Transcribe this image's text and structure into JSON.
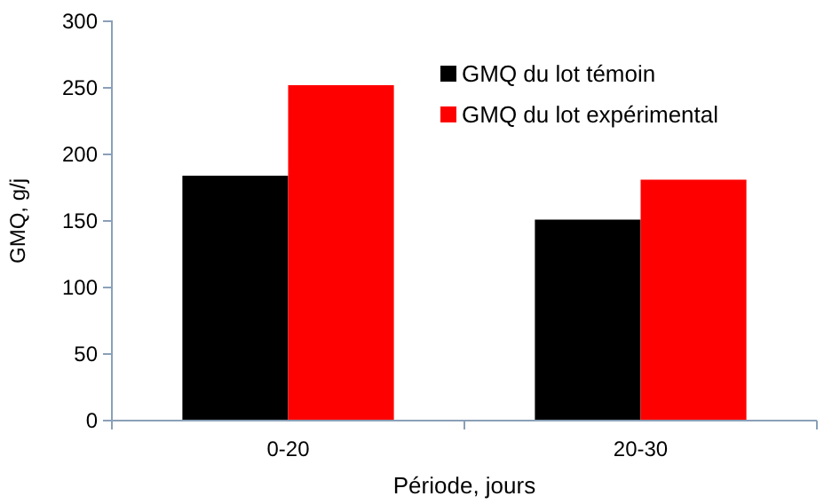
{
  "chart_data": {
    "type": "bar",
    "xlabel": "Période, jours",
    "ylabel": "GMQ, g/j",
    "categories": [
      "0-20",
      "20-30"
    ],
    "series": [
      {
        "name": "GMQ du lot témoin",
        "color": "#000000",
        "values": [
          184,
          151
        ]
      },
      {
        "name": "GMQ du lot expérimental",
        "color": "#ff0000",
        "values": [
          252,
          181
        ]
      }
    ],
    "ylim": [
      0,
      300
    ],
    "yticks": [
      0,
      50,
      100,
      150,
      200,
      250,
      300
    ],
    "grid": false,
    "legend": "top right"
  }
}
